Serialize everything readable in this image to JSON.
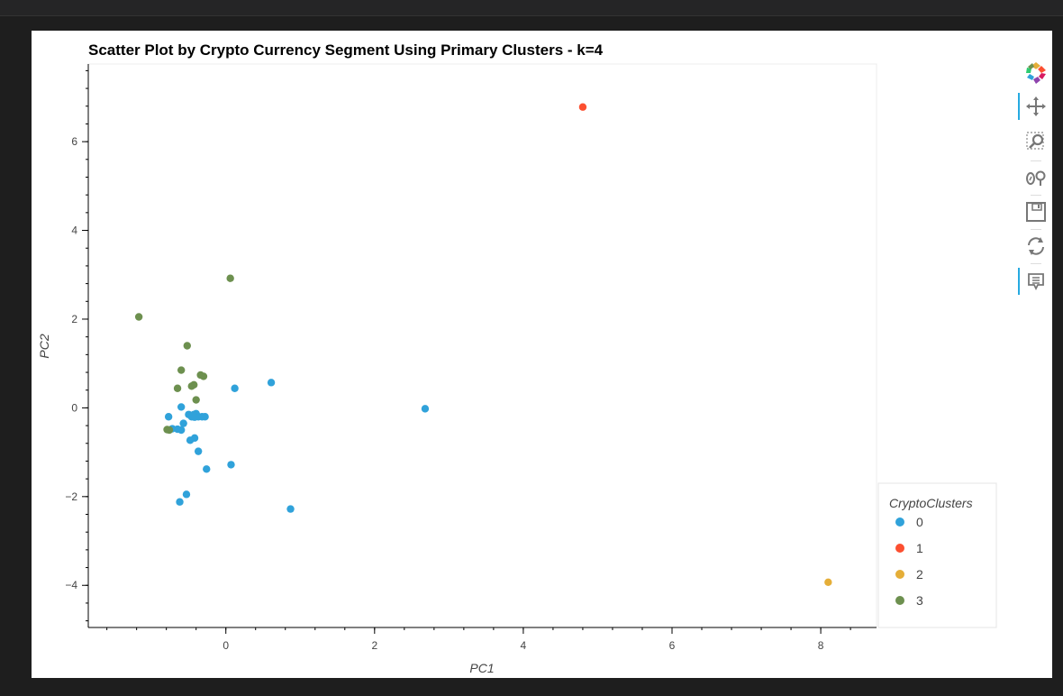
{
  "chart_data": {
    "type": "scatter",
    "title": "Scatter Plot by Crypto Currency Segment Using Primary Clusters - k=4",
    "xlabel": "PC1",
    "ylabel": "PC2",
    "xlim": [
      -1.85,
      8.75
    ],
    "ylim": [
      -4.95,
      7.75
    ],
    "xticks": [
      0,
      2,
      4,
      6,
      8
    ],
    "yticks": [
      -4,
      -2,
      0,
      2,
      4,
      6
    ],
    "xtick_labels": [
      "0",
      "2",
      "4",
      "6",
      "8"
    ],
    "ytick_labels": [
      "−4",
      "−2",
      "0",
      "2",
      "4",
      "6"
    ],
    "legend_title": "CryptoClusters",
    "legend_position": "bottom-right",
    "series": [
      {
        "name": "0",
        "color": "#30a2da",
        "points": [
          [
            0.12,
            0.44
          ],
          [
            0.61,
            0.57
          ],
          [
            2.68,
            -0.02
          ],
          [
            0.07,
            -1.28
          ],
          [
            0.87,
            -2.28
          ],
          [
            -0.6,
            0.02
          ],
          [
            -0.77,
            -0.2
          ],
          [
            -0.72,
            -0.47
          ],
          [
            -0.65,
            -0.48
          ],
          [
            -0.6,
            -0.5
          ],
          [
            -0.57,
            -0.35
          ],
          [
            -0.5,
            -0.15
          ],
          [
            -0.46,
            -0.2
          ],
          [
            -0.43,
            -0.15
          ],
          [
            -0.4,
            -0.13
          ],
          [
            -0.37,
            -0.2
          ],
          [
            -0.32,
            -0.2
          ],
          [
            -0.28,
            -0.2
          ],
          [
            -0.42,
            -0.21
          ],
          [
            -0.48,
            -0.73
          ],
          [
            -0.42,
            -0.68
          ],
          [
            -0.37,
            -0.98
          ],
          [
            -0.26,
            -1.38
          ],
          [
            -0.53,
            -1.95
          ],
          [
            -0.62,
            -2.12
          ]
        ]
      },
      {
        "name": "1",
        "color": "#fc4f30",
        "points": [
          [
            4.8,
            6.78
          ]
        ]
      },
      {
        "name": "2",
        "color": "#e5ae38",
        "points": [
          [
            8.1,
            -3.93
          ]
        ]
      },
      {
        "name": "3",
        "color": "#6d904f",
        "points": [
          [
            -1.17,
            2.05
          ],
          [
            0.06,
            2.92
          ],
          [
            -0.52,
            1.4
          ],
          [
            -0.6,
            0.85
          ],
          [
            -0.34,
            0.74
          ],
          [
            -0.3,
            0.71
          ],
          [
            -0.43,
            0.52
          ],
          [
            -0.46,
            0.49
          ],
          [
            -0.65,
            0.44
          ],
          [
            -0.4,
            0.18
          ],
          [
            -0.79,
            -0.49
          ],
          [
            -0.76,
            -0.5
          ]
        ]
      }
    ]
  },
  "toolbar": {
    "logo": "bokeh-logo-icon",
    "tools": [
      "pan-icon",
      "box-zoom-icon",
      "wheel-zoom-icon",
      "save-icon",
      "reset-icon",
      "hover-icon"
    ]
  }
}
